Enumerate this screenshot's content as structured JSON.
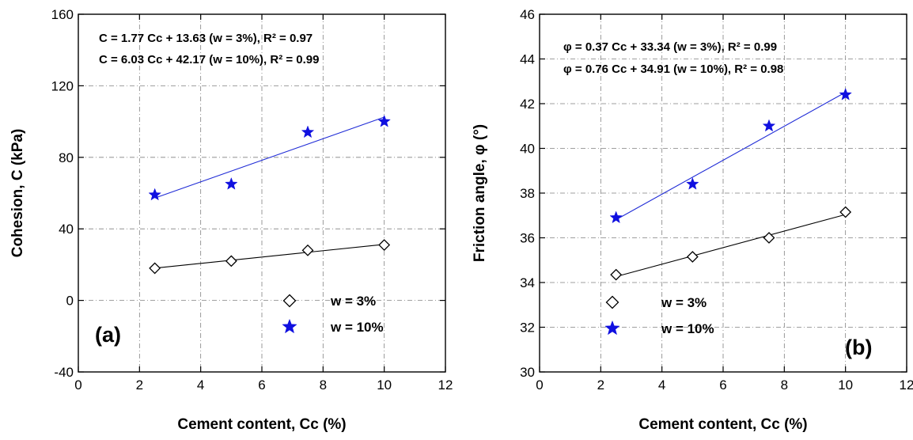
{
  "colors": {
    "series_w3": "#000000",
    "series_w10": "#1f2bd6",
    "marker_w10": "#1010e0",
    "grid": "#808080"
  },
  "chart_data": [
    {
      "type": "scatter",
      "panel_label": "(a)",
      "xlabel": "Cement content, Cc (%)",
      "ylabel": "Cohesion, C (kPa)",
      "xlim": [
        0,
        12
      ],
      "ylim": [
        -40,
        160
      ],
      "xticks": [
        0,
        2,
        4,
        6,
        8,
        10,
        12
      ],
      "yticks": [
        -40,
        0,
        40,
        80,
        120,
        160
      ],
      "grid": true,
      "legend_position": "bottom-right",
      "annotations": [
        "C = 1.77 Cc + 13.63 (w = 3%), R² = 0.97",
        "C = 6.03 Cc + 42.17 (w = 10%), R² = 0.99"
      ],
      "series": [
        {
          "name": "w = 3%",
          "marker": "diamond-open",
          "x": [
            2.5,
            5,
            7.5,
            10
          ],
          "y": [
            18,
            22,
            28,
            31
          ],
          "fit": {
            "x": [
              2.5,
              10
            ],
            "y": [
              18.05,
              31.33
            ]
          }
        },
        {
          "name": "w = 10%",
          "marker": "star",
          "x": [
            2.5,
            5,
            7.5,
            10
          ],
          "y": [
            59,
            65,
            94,
            100
          ],
          "fit": {
            "x": [
              2.5,
              10
            ],
            "y": [
              57.25,
              102.47
            ]
          }
        }
      ]
    },
    {
      "type": "scatter",
      "panel_label": "(b)",
      "xlabel": "Cement content, Cc (%)",
      "ylabel": "Friction angle, φ (°)",
      "xlim": [
        0,
        12
      ],
      "ylim": [
        30,
        46
      ],
      "xticks": [
        0,
        2,
        4,
        6,
        8,
        10,
        12
      ],
      "yticks": [
        30,
        32,
        34,
        36,
        38,
        40,
        42,
        44,
        46
      ],
      "grid": true,
      "legend_position": "bottom-left",
      "annotations": [
        "φ = 0.37 Cc + 33.34 (w = 3%), R² = 0.99",
        "φ = 0.76 Cc + 34.91 (w = 10%), R² = 0.98"
      ],
      "series": [
        {
          "name": "w = 3%",
          "marker": "diamond-open",
          "x": [
            2.5,
            5,
            7.5,
            10
          ],
          "y": [
            34.35,
            35.15,
            36.0,
            37.15
          ],
          "fit": {
            "x": [
              2.5,
              10
            ],
            "y": [
              34.265,
              37.04
            ]
          }
        },
        {
          "name": "w = 10%",
          "marker": "star",
          "x": [
            2.5,
            5,
            7.5,
            10
          ],
          "y": [
            36.9,
            38.4,
            41.0,
            42.4
          ],
          "fit": {
            "x": [
              2.5,
              10
            ],
            "y": [
              36.81,
              42.51
            ]
          }
        }
      ]
    }
  ]
}
